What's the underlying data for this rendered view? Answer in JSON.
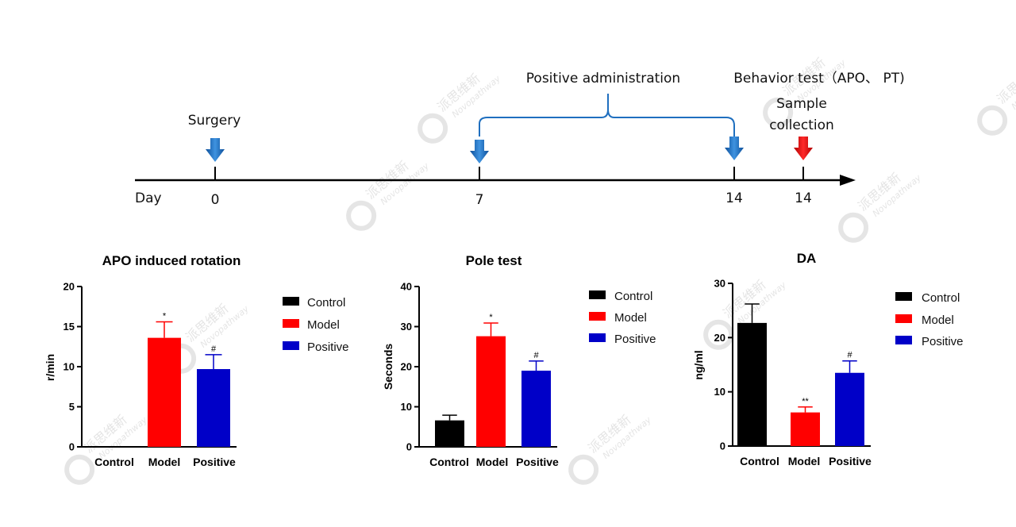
{
  "watermark": {
    "cn": "派思维新",
    "en": "Novopathway"
  },
  "timeline": {
    "day_label": "Day",
    "events": [
      {
        "day": "0",
        "label": "Surgery",
        "arrow_color": "#1f6fbf"
      },
      {
        "day": "7",
        "label": "",
        "arrow_color": "#1f6fbf"
      },
      {
        "day": "14",
        "label": "Behavior test（APO、 PT)",
        "arrow_color": "#1f6fbf"
      },
      {
        "day": "14",
        "label_line1": "Sample",
        "label_line2": "collection",
        "arrow_color": "#e8141c"
      }
    ],
    "bracket_label": "Positive administration"
  },
  "colors": {
    "Control": "#000000",
    "Model": "#ff0000",
    "Positive": "#0000c8"
  },
  "chart_data": [
    {
      "type": "bar",
      "title": "APO induced rotation",
      "ylabel": "r/min",
      "xlabel": "",
      "ylim": [
        0,
        20
      ],
      "yticks": [
        0,
        5,
        10,
        15,
        20
      ],
      "categories": [
        "Control",
        "Model",
        "Positive"
      ],
      "values": [
        0,
        13.6,
        9.7
      ],
      "errors": [
        0,
        2.0,
        1.8
      ],
      "significance": [
        "",
        "*",
        "#"
      ],
      "legend": [
        "Control",
        "Model",
        "Positive"
      ],
      "legend_position": "right"
    },
    {
      "type": "bar",
      "title": "Pole test",
      "ylabel": "Seconds",
      "xlabel": "",
      "ylim": [
        0,
        40
      ],
      "yticks": [
        0,
        10,
        20,
        30,
        40
      ],
      "categories": [
        "Control",
        "Model",
        "Positive"
      ],
      "values": [
        6.6,
        27.6,
        19.0
      ],
      "errors": [
        1.3,
        3.3,
        2.4
      ],
      "significance": [
        "",
        "*",
        "#"
      ],
      "legend": [
        "Control",
        "Model",
        "Positive"
      ],
      "legend_position": "right"
    },
    {
      "type": "bar",
      "title": "DA",
      "ylabel": "ng/ml",
      "xlabel": "",
      "ylim": [
        0,
        30
      ],
      "yticks": [
        0,
        10,
        20,
        30
      ],
      "categories": [
        "Control",
        "Model",
        "Positive"
      ],
      "values": [
        22.7,
        6.2,
        13.5
      ],
      "errors": [
        3.5,
        1.0,
        2.2
      ],
      "significance": [
        "",
        "**",
        "#"
      ],
      "legend": [
        "Control",
        "Model",
        "Positive"
      ],
      "legend_position": "right"
    }
  ]
}
